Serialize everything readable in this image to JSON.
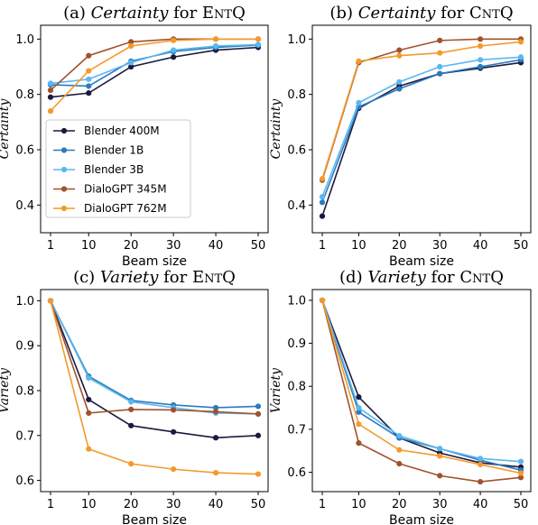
{
  "chart_data": [
    {
      "type": "line",
      "title_prefix": "(a) ",
      "title_italic": "Certainty",
      "title_mid": " for ",
      "title_sc": "EntQ",
      "xlabel": "Beam size",
      "ylabel": "Certainty",
      "x": [
        1,
        10,
        20,
        30,
        40,
        50
      ],
      "xticks": [
        "1",
        "10",
        "20",
        "30",
        "40",
        "50"
      ],
      "ylim": [
        0.3,
        1.05
      ],
      "yticks": [
        0.4,
        0.6,
        0.8,
        1.0
      ],
      "yticklabels": [
        "0.4",
        "0.6",
        "0.8",
        "1.0"
      ],
      "legend_placement": "center-left",
      "series": [
        {
          "name": "Blender 400M",
          "color": "#1a1a40",
          "values": [
            0.79,
            0.805,
            0.9,
            0.935,
            0.96,
            0.97
          ]
        },
        {
          "name": "Blender 1B",
          "color": "#2b7bbf",
          "values": [
            0.835,
            0.83,
            0.92,
            0.955,
            0.97,
            0.978
          ]
        },
        {
          "name": "Blender 3B",
          "color": "#5ab8f0",
          "values": [
            0.84,
            0.855,
            0.915,
            0.96,
            0.975,
            0.98
          ]
        },
        {
          "name": "DialoGPT 345M",
          "color": "#a0522d",
          "values": [
            0.815,
            0.94,
            0.99,
            1.0,
            1.0,
            1.0
          ]
        },
        {
          "name": "DialoGPT 762M",
          "color": "#f39a2b",
          "values": [
            0.74,
            0.885,
            0.975,
            0.995,
            1.0,
            1.0
          ]
        }
      ]
    },
    {
      "type": "line",
      "title_prefix": "(b) ",
      "title_italic": "Certainty",
      "title_mid": " for ",
      "title_sc": "CntQ",
      "xlabel": "Beam size",
      "ylabel": "Certainty",
      "x": [
        1,
        10,
        20,
        30,
        40,
        50
      ],
      "xticks": [
        "1",
        "10",
        "20",
        "30",
        "40",
        "50"
      ],
      "ylim": [
        0.3,
        1.05
      ],
      "yticks": [
        0.4,
        0.6,
        0.8,
        1.0
      ],
      "yticklabels": [
        "0.4",
        "0.6",
        "0.8",
        "1.0"
      ],
      "series": [
        {
          "name": "Blender 400M",
          "color": "#1a1a40",
          "values": [
            0.36,
            0.75,
            0.83,
            0.875,
            0.895,
            0.915
          ]
        },
        {
          "name": "Blender 1B",
          "color": "#2b7bbf",
          "values": [
            0.41,
            0.755,
            0.82,
            0.875,
            0.9,
            0.925
          ]
        },
        {
          "name": "Blender 3B",
          "color": "#5ab8f0",
          "values": [
            0.43,
            0.77,
            0.845,
            0.9,
            0.925,
            0.935
          ]
        },
        {
          "name": "DialoGPT 345M",
          "color": "#a0522d",
          "values": [
            0.49,
            0.915,
            0.96,
            0.995,
            1.0,
            1.0
          ]
        },
        {
          "name": "DialoGPT 762M",
          "color": "#f39a2b",
          "values": [
            0.495,
            0.92,
            0.94,
            0.95,
            0.975,
            0.99
          ]
        }
      ]
    },
    {
      "type": "line",
      "title_prefix": "(c) ",
      "title_italic": "Variety",
      "title_mid": " for ",
      "title_sc": "EntQ",
      "xlabel": "Beam size",
      "ylabel": "Variety",
      "x": [
        1,
        10,
        20,
        30,
        40,
        50
      ],
      "xticks": [
        "1",
        "10",
        "20",
        "30",
        "40",
        "50"
      ],
      "ylim": [
        0.575,
        1.025
      ],
      "yticks": [
        0.6,
        0.7,
        0.8,
        0.9,
        1.0
      ],
      "yticklabels": [
        "0.6",
        "0.7",
        "0.8",
        "0.9",
        "1.0"
      ],
      "series": [
        {
          "name": "Blender 400M",
          "color": "#1a1a40",
          "values": [
            1.0,
            0.78,
            0.722,
            0.708,
            0.695,
            0.7
          ]
        },
        {
          "name": "Blender 1B",
          "color": "#2b7bbf",
          "values": [
            1.0,
            0.832,
            0.778,
            0.768,
            0.762,
            0.765
          ]
        },
        {
          "name": "Blender 3B",
          "color": "#5ab8f0",
          "values": [
            1.0,
            0.828,
            0.775,
            0.762,
            0.75,
            0.748
          ]
        },
        {
          "name": "DialoGPT 345M",
          "color": "#a0522d",
          "values": [
            1.0,
            0.75,
            0.758,
            0.757,
            0.753,
            0.748
          ]
        },
        {
          "name": "DialoGPT 762M",
          "color": "#f39a2b",
          "values": [
            1.0,
            0.67,
            0.637,
            0.625,
            0.617,
            0.614
          ]
        }
      ]
    },
    {
      "type": "line",
      "title_prefix": "(d) ",
      "title_italic": "Variety",
      "title_mid": " for ",
      "title_sc": "CntQ",
      "xlabel": "Beam size",
      "ylabel": "Variety",
      "x": [
        1,
        10,
        20,
        30,
        40,
        50
      ],
      "xticks": [
        "1",
        "10",
        "20",
        "30",
        "40",
        "50"
      ],
      "ylim": [
        0.555,
        1.025
      ],
      "yticks": [
        0.6,
        0.7,
        0.8,
        0.9,
        1.0
      ],
      "yticklabels": [
        "0.6",
        "0.7",
        "0.8",
        "0.9",
        "1.0"
      ],
      "series": [
        {
          "name": "Blender 400M",
          "color": "#1a1a40",
          "values": [
            1.0,
            0.775,
            0.68,
            0.645,
            0.622,
            0.612
          ]
        },
        {
          "name": "Blender 1B",
          "color": "#2b7bbf",
          "values": [
            1.0,
            0.74,
            0.68,
            0.655,
            0.628,
            0.605
          ]
        },
        {
          "name": "Blender 3B",
          "color": "#5ab8f0",
          "values": [
            1.0,
            0.75,
            0.685,
            0.655,
            0.632,
            0.625
          ]
        },
        {
          "name": "DialoGPT 345M",
          "color": "#a0522d",
          "values": [
            1.0,
            0.668,
            0.62,
            0.592,
            0.578,
            0.588
          ]
        },
        {
          "name": "DialoGPT 762M",
          "color": "#f39a2b",
          "values": [
            1.0,
            0.712,
            0.652,
            0.638,
            0.618,
            0.598
          ]
        }
      ]
    }
  ]
}
